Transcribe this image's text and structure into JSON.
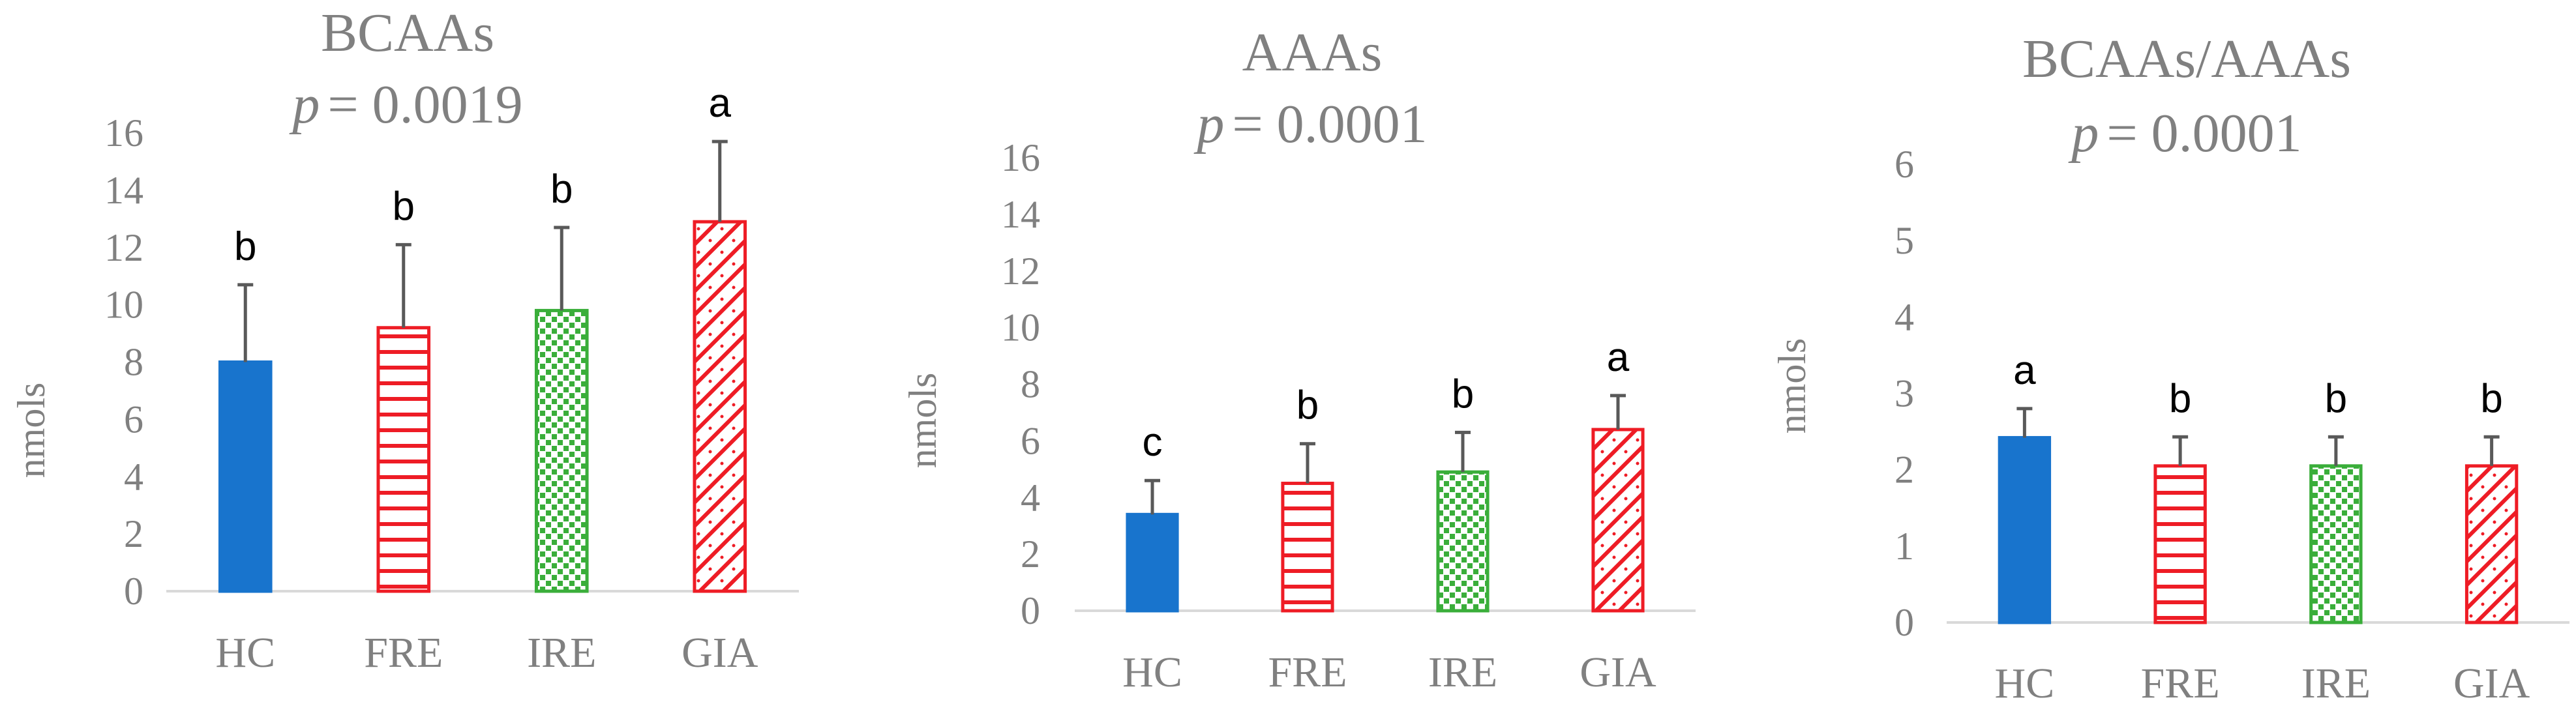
{
  "colors": {
    "text": "#808080",
    "axis": "#d9d9d9",
    "error_bar": "#595959",
    "letters": "#000000",
    "HC": "#1874cd",
    "FRE": "#ee1c25",
    "IRE": "#3aae3a",
    "GIA": "#ee1c25"
  },
  "fills": {
    "HC": "solid",
    "FRE": "horizontal-stripes",
    "IRE": "dots",
    "GIA": "diagonal-crosshatch"
  },
  "chart_data": [
    {
      "type": "bar",
      "title": "BCAAs",
      "p_label": "p",
      "p_value": "= 0.0019",
      "ylabel": "nmols",
      "categories": [
        "HC",
        "FRE",
        "IRE",
        "GIA"
      ],
      "values": [
        8.0,
        9.2,
        9.8,
        12.9
      ],
      "errors": [
        2.7,
        2.9,
        2.9,
        2.8
      ],
      "letters": [
        "b",
        "b",
        "b",
        "a"
      ],
      "ylim": [
        0,
        16
      ],
      "yticks": [
        "0",
        "2",
        "4",
        "6",
        "8",
        "10",
        "12",
        "14",
        "16"
      ],
      "grid": false
    },
    {
      "type": "bar",
      "title": "AAAs",
      "p_label": "p",
      "p_value": "= 0.0001",
      "ylabel": "nmols",
      "categories": [
        "HC",
        "FRE",
        "IRE",
        "GIA"
      ],
      "values": [
        3.4,
        4.5,
        4.9,
        6.4
      ],
      "errors": [
        1.2,
        1.4,
        1.4,
        1.2
      ],
      "letters": [
        "c",
        "b",
        "b",
        "a"
      ],
      "ylim": [
        0,
        16
      ],
      "yticks": [
        "0",
        "2",
        "4",
        "6",
        "8",
        "10",
        "12",
        "14",
        "16"
      ],
      "grid": false
    },
    {
      "type": "bar",
      "title": "BCAAs/AAAs",
      "p_label": "p",
      "p_value": "= 0.0001",
      "ylabel": "nmols",
      "categories": [
        "HC",
        "FRE",
        "IRE",
        "GIA"
      ],
      "values": [
        2.42,
        2.05,
        2.05,
        2.05
      ],
      "errors": [
        0.38,
        0.38,
        0.38,
        0.38
      ],
      "letters": [
        "a",
        "b",
        "b",
        "b"
      ],
      "ylim": [
        0,
        6
      ],
      "yticks": [
        "0",
        "1",
        "2",
        "3",
        "4",
        "5",
        "6"
      ],
      "grid": false
    }
  ]
}
